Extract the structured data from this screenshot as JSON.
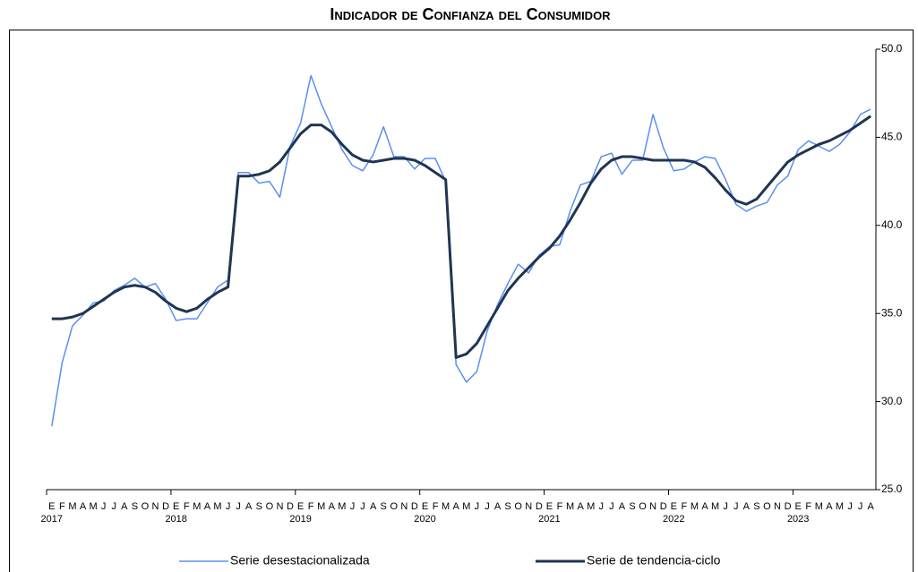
{
  "chart_data": {
    "type": "line",
    "title": "Indicador de Confianza del Consumidor",
    "categories": [
      "E",
      "F",
      "M",
      "A",
      "M",
      "J",
      "J",
      "A",
      "S",
      "O",
      "N",
      "D",
      "E",
      "F",
      "M",
      "A",
      "M",
      "J",
      "J",
      "A",
      "S",
      "O",
      "N",
      "D",
      "E",
      "F",
      "M",
      "A",
      "M",
      "J",
      "J",
      "A",
      "S",
      "O",
      "N",
      "D",
      "E",
      "F",
      "M",
      "A",
      "M",
      "J",
      "J",
      "A",
      "S",
      "O",
      "N",
      "D",
      "E",
      "F",
      "M",
      "A",
      "M",
      "J",
      "J",
      "A",
      "S",
      "O",
      "N",
      "D",
      "E",
      "F",
      "M",
      "A",
      "M",
      "J",
      "J",
      "A",
      "S",
      "O",
      "N",
      "D",
      "E",
      "F",
      "M",
      "A",
      "M",
      "J",
      "J",
      "A"
    ],
    "year_labels": [
      "2017",
      "2018",
      "2019",
      "2020",
      "2021",
      "2022",
      "2023"
    ],
    "series": [
      {
        "name": "Serie desestacionalizada",
        "color": "#5b8ff0",
        "values": [
          28.6,
          32.2,
          34.3,
          34.9,
          35.6,
          35.7,
          36.3,
          36.6,
          37.0,
          36.5,
          36.7,
          35.8,
          34.6,
          34.7,
          34.7,
          35.6,
          36.5,
          36.9,
          43.0,
          43.0,
          42.4,
          42.5,
          41.6,
          44.5,
          45.8,
          48.5,
          46.9,
          45.6,
          44.3,
          43.4,
          43.1,
          44.0,
          45.6,
          43.9,
          43.9,
          43.2,
          43.8,
          43.8,
          42.5,
          32.1,
          31.1,
          31.7,
          34.0,
          35.5,
          36.7,
          37.8,
          37.3,
          38.3,
          38.8,
          38.9,
          40.8,
          42.3,
          42.5,
          43.9,
          44.1,
          42.9,
          43.7,
          43.7,
          46.3,
          44.4,
          43.1,
          43.2,
          43.6,
          43.9,
          43.8,
          42.6,
          41.2,
          40.8,
          41.1,
          41.3,
          42.3,
          42.8,
          44.3,
          44.8,
          44.5,
          44.2,
          44.6,
          45.3,
          46.3,
          46.6
        ]
      },
      {
        "name": "Serie de tendencia-ciclo",
        "color": "#1f3552",
        "values": [
          34.7,
          34.7,
          34.8,
          35.0,
          35.4,
          35.8,
          36.2,
          36.5,
          36.6,
          36.5,
          36.2,
          35.7,
          35.3,
          35.1,
          35.3,
          35.8,
          36.2,
          36.5,
          42.8,
          42.8,
          42.9,
          43.1,
          43.6,
          44.4,
          45.2,
          45.7,
          45.7,
          45.3,
          44.6,
          44.0,
          43.7,
          43.6,
          43.7,
          43.8,
          43.8,
          43.7,
          43.4,
          43.0,
          42.6,
          32.5,
          32.7,
          33.3,
          34.3,
          35.3,
          36.3,
          37.0,
          37.6,
          38.2,
          38.7,
          39.4,
          40.3,
          41.3,
          42.4,
          43.2,
          43.7,
          43.9,
          43.9,
          43.8,
          43.7,
          43.7,
          43.7,
          43.7,
          43.6,
          43.3,
          42.7,
          42.0,
          41.4,
          41.2,
          41.5,
          42.2,
          42.9,
          43.6,
          44.0,
          44.3,
          44.6,
          44.8,
          45.1,
          45.4,
          45.8,
          46.2
        ]
      }
    ],
    "ylim": [
      25,
      50
    ],
    "yticks": [
      {
        "value": 25,
        "label": "25.0"
      },
      {
        "value": 30,
        "label": "30.0"
      },
      {
        "value": 35,
        "label": "35.0"
      },
      {
        "value": 40,
        "label": "40.0"
      },
      {
        "value": 45,
        "label": "45.0"
      },
      {
        "value": 50,
        "label": "50.0"
      }
    ],
    "legend": "bottom"
  }
}
